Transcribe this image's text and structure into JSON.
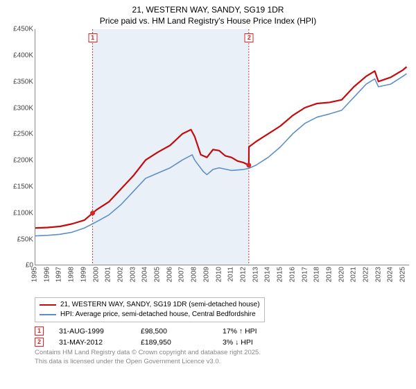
{
  "title": {
    "line1": "21, WESTERN WAY, SANDY, SG19 1DR",
    "line2": "Price paid vs. HM Land Registry's House Price Index (HPI)"
  },
  "chart": {
    "type": "line",
    "background_color": "#ffffff",
    "shaded_band_color": "#eaf0f7",
    "shaded_band_xstart": 1999.67,
    "shaded_band_xend": 2012.42,
    "xlim": [
      1995,
      2025.5
    ],
    "ylim": [
      0,
      450000
    ],
    "ytick_step": 50000,
    "ytick_labels": [
      "£0",
      "£50K",
      "£100K",
      "£150K",
      "£200K",
      "£250K",
      "£300K",
      "£350K",
      "£400K",
      "£450K"
    ],
    "x_ticks": [
      1995,
      1996,
      1997,
      1998,
      1999,
      2000,
      2001,
      2002,
      2003,
      2004,
      2005,
      2006,
      2007,
      2008,
      2009,
      2010,
      2011,
      2012,
      2013,
      2014,
      2015,
      2016,
      2017,
      2018,
      2019,
      2020,
      2021,
      2022,
      2023,
      2024,
      2025
    ],
    "series": [
      {
        "name": "21, WESTERN WAY, SANDY, SG19 1DR (semi-detached house)",
        "color": "#c40a0a",
        "line_width": 2.2,
        "data": [
          [
            1995,
            70000
          ],
          [
            1996,
            71000
          ],
          [
            1997,
            73000
          ],
          [
            1998,
            78000
          ],
          [
            1999,
            85000
          ],
          [
            1999.67,
            98500
          ],
          [
            2000,
            105000
          ],
          [
            2001,
            120000
          ],
          [
            2002,
            145000
          ],
          [
            2003,
            170000
          ],
          [
            2004,
            200000
          ],
          [
            2005,
            215000
          ],
          [
            2006,
            228000
          ],
          [
            2007,
            250000
          ],
          [
            2007.7,
            258000
          ],
          [
            2008,
            245000
          ],
          [
            2008.5,
            210000
          ],
          [
            2009,
            205000
          ],
          [
            2009.5,
            220000
          ],
          [
            2010,
            218000
          ],
          [
            2010.5,
            208000
          ],
          [
            2011,
            205000
          ],
          [
            2011.5,
            198000
          ],
          [
            2012,
            195000
          ],
          [
            2012.42,
            189950
          ],
          [
            2012.43,
            225000
          ],
          [
            2013,
            235000
          ],
          [
            2014,
            250000
          ],
          [
            2015,
            265000
          ],
          [
            2016,
            285000
          ],
          [
            2017,
            300000
          ],
          [
            2018,
            308000
          ],
          [
            2019,
            310000
          ],
          [
            2020,
            315000
          ],
          [
            2021,
            340000
          ],
          [
            2022,
            360000
          ],
          [
            2022.7,
            370000
          ],
          [
            2023,
            350000
          ],
          [
            2024,
            358000
          ],
          [
            2025,
            372000
          ],
          [
            2025.3,
            378000
          ]
        ]
      },
      {
        "name": "HPI: Average price, semi-detached house, Central Bedfordshire",
        "color": "#5c8fc7",
        "line_width": 1.6,
        "data": [
          [
            1995,
            55000
          ],
          [
            1996,
            56000
          ],
          [
            1997,
            58000
          ],
          [
            1998,
            62000
          ],
          [
            1999,
            70000
          ],
          [
            2000,
            82000
          ],
          [
            2001,
            95000
          ],
          [
            2002,
            115000
          ],
          [
            2003,
            140000
          ],
          [
            2004,
            165000
          ],
          [
            2005,
            175000
          ],
          [
            2006,
            185000
          ],
          [
            2007,
            200000
          ],
          [
            2007.8,
            210000
          ],
          [
            2008,
            200000
          ],
          [
            2008.7,
            178000
          ],
          [
            2009,
            172000
          ],
          [
            2009.5,
            182000
          ],
          [
            2010,
            185000
          ],
          [
            2011,
            180000
          ],
          [
            2012,
            182000
          ],
          [
            2012.42,
            184000
          ],
          [
            2013,
            190000
          ],
          [
            2014,
            205000
          ],
          [
            2015,
            225000
          ],
          [
            2016,
            250000
          ],
          [
            2017,
            270000
          ],
          [
            2018,
            282000
          ],
          [
            2019,
            288000
          ],
          [
            2020,
            295000
          ],
          [
            2021,
            320000
          ],
          [
            2022,
            345000
          ],
          [
            2022.7,
            355000
          ],
          [
            2023,
            340000
          ],
          [
            2024,
            345000
          ],
          [
            2025,
            360000
          ],
          [
            2025.3,
            365000
          ]
        ]
      }
    ],
    "sale_markers": [
      {
        "ref": "1",
        "x": 1999.67,
        "y": 98500,
        "marker_color": "#d62728",
        "marker_radius": 3.5
      },
      {
        "ref": "2",
        "x": 2012.42,
        "y": 189950,
        "marker_color": "#d62728",
        "marker_radius": 3.5
      }
    ],
    "marker_callout_color": "#d62728"
  },
  "legend": {
    "items": [
      {
        "color": "#c40a0a",
        "label": "21, WESTERN WAY, SANDY, SG19 1DR (semi-detached house)"
      },
      {
        "color": "#5c8fc7",
        "label": "HPI: Average price, semi-detached house, Central Bedfordshire"
      }
    ]
  },
  "sales": [
    {
      "ref": "1",
      "date": "31-AUG-1999",
      "price": "£98,500",
      "delta": "17% ↑ HPI"
    },
    {
      "ref": "2",
      "date": "31-MAY-2012",
      "price": "£189,950",
      "delta": "3% ↓ HPI"
    }
  ],
  "attribution": {
    "line1": "Contains HM Land Registry data © Crown copyright and database right 2025.",
    "line2": "This data is licensed under the Open Government Licence v3.0."
  }
}
